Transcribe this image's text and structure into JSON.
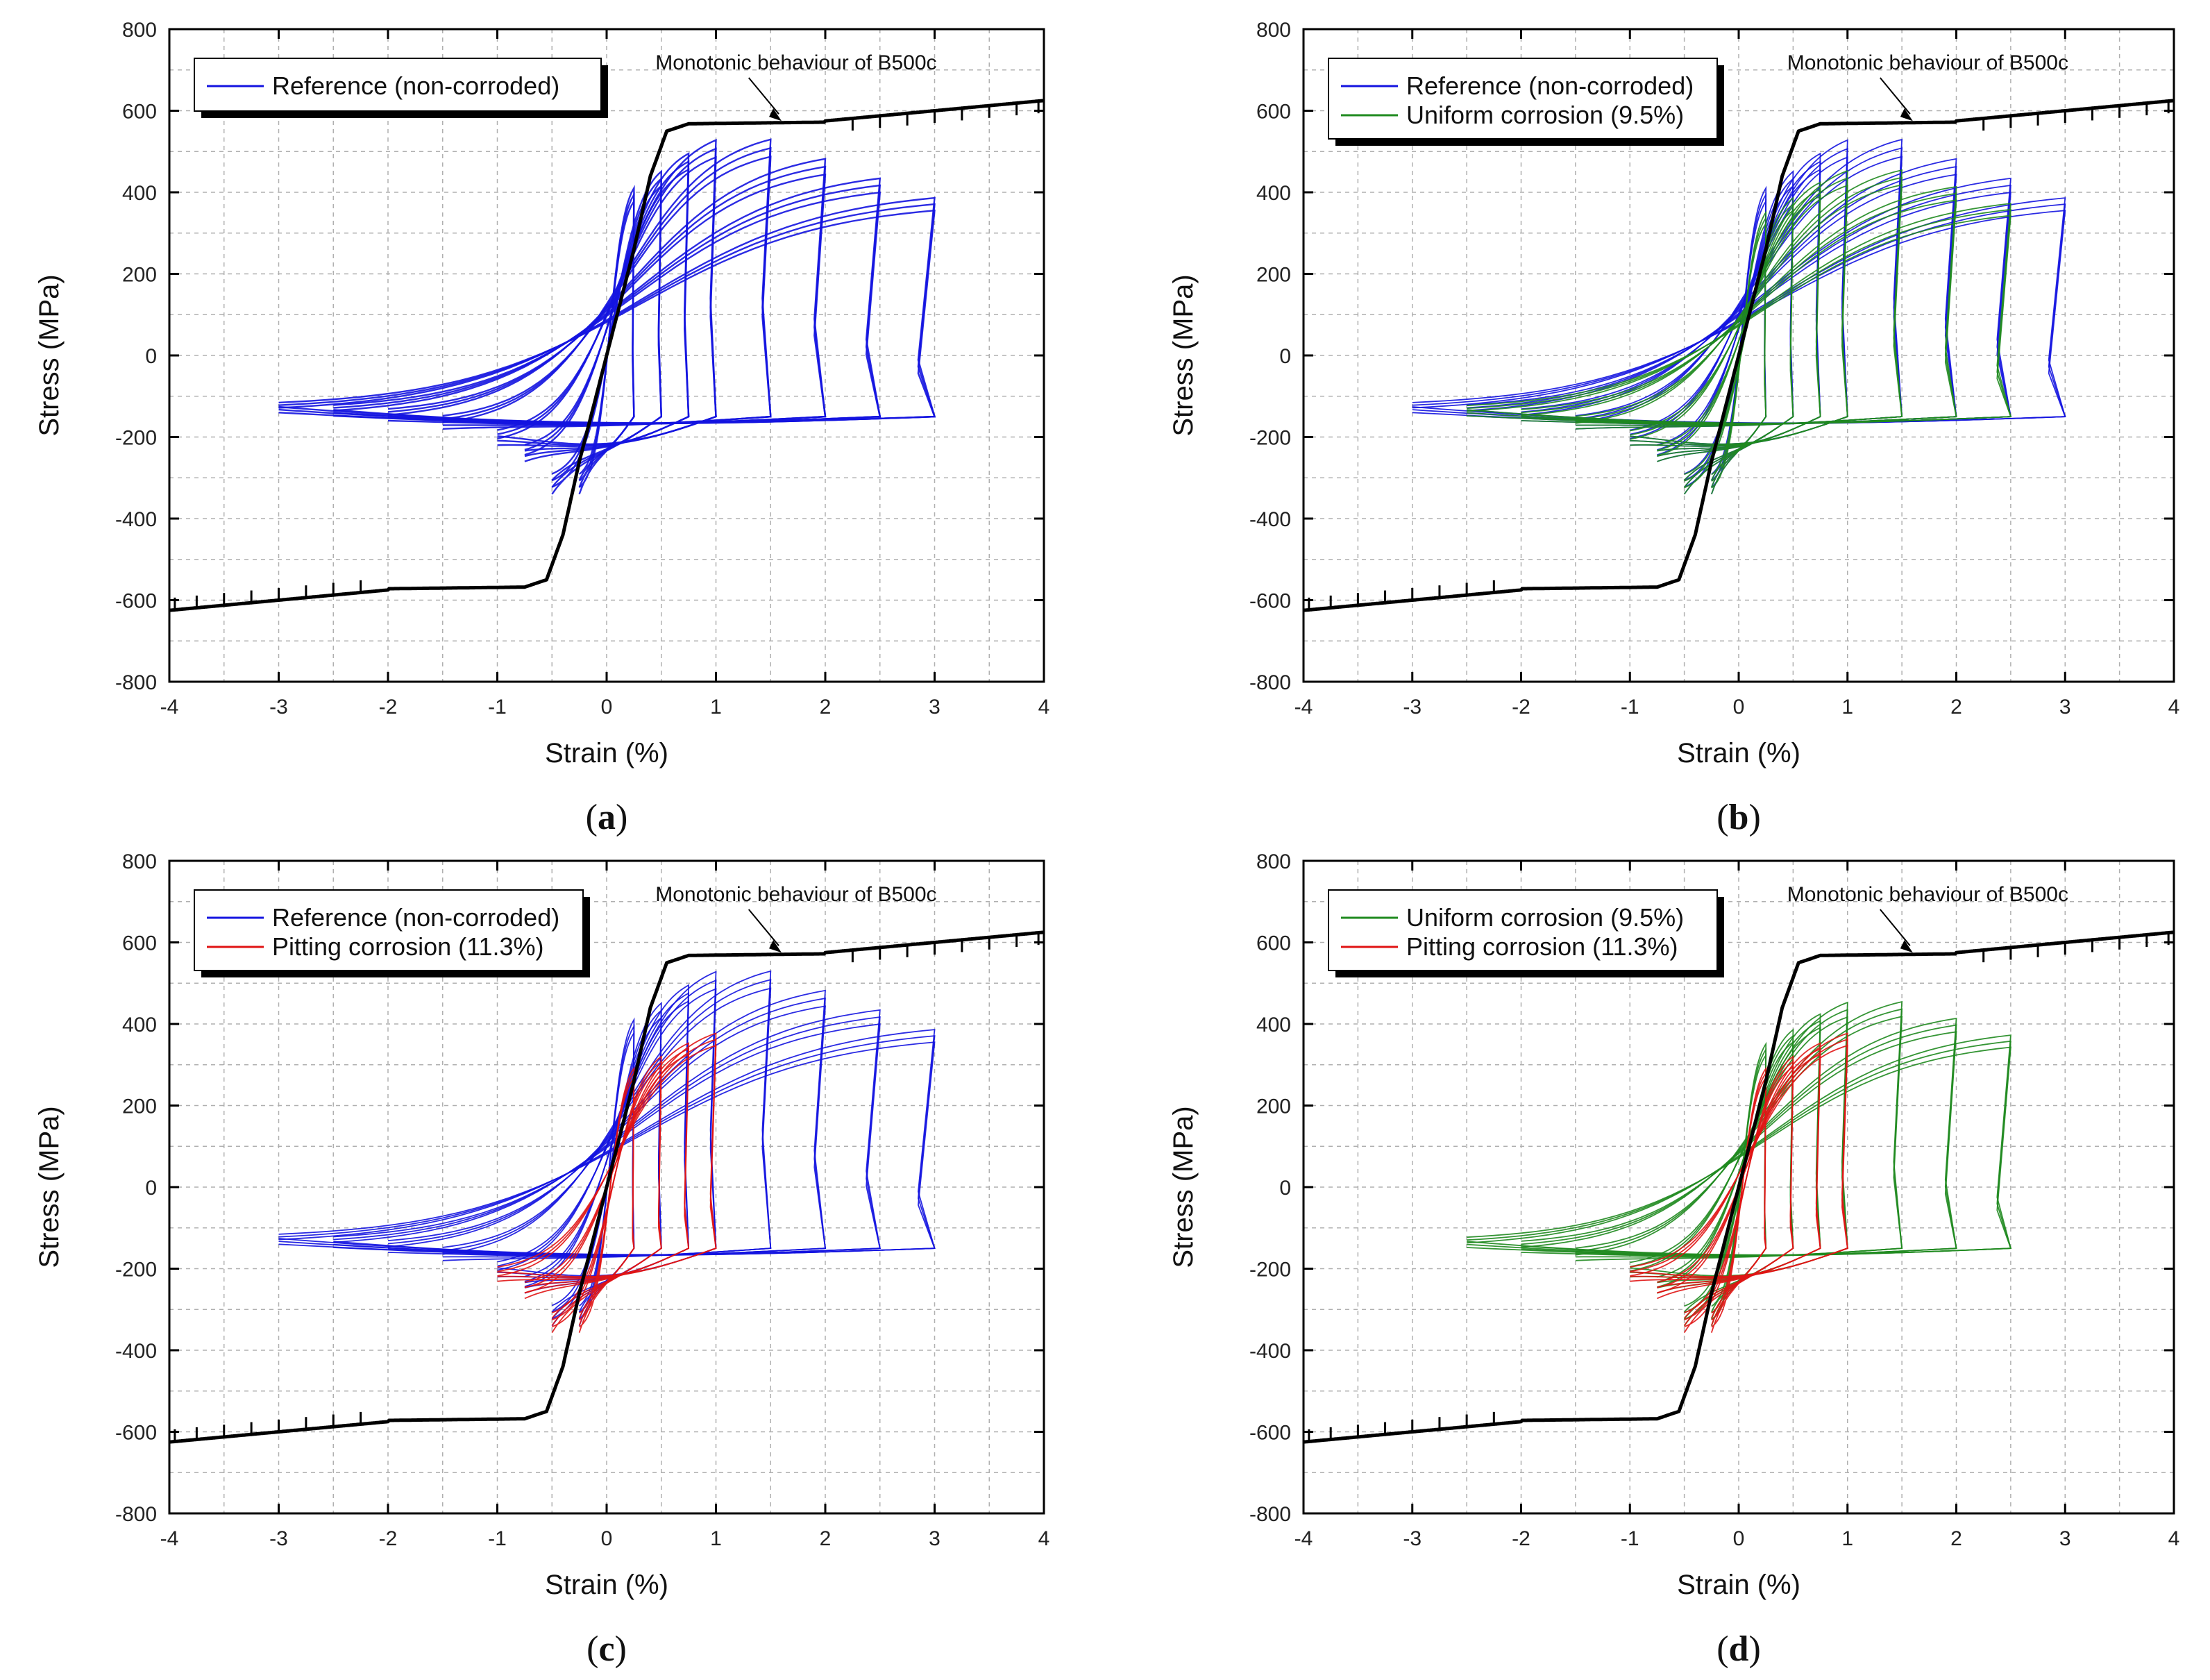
{
  "colors": {
    "reference": "#1414e0",
    "uniform": "#1f8a1f",
    "pitting": "#e01414",
    "monotonic": "#000000",
    "grid": "#b0b0b0"
  },
  "axes": {
    "xlabel": "Strain (%)",
    "ylabel": "Stress (MPa)",
    "xlim": [
      -4,
      4
    ],
    "ylim": [
      -800,
      800
    ],
    "xticks": [
      "-4",
      "-3",
      "-2",
      "-1",
      "0",
      "1",
      "2",
      "3",
      "4"
    ],
    "yticks": [
      "-800",
      "-600",
      "-400",
      "-200",
      "0",
      "200",
      "400",
      "600",
      "800"
    ],
    "grid": true
  },
  "annotation": "Monotonic behaviour of B500c",
  "panel_labels": [
    "a",
    "b",
    "c",
    "d"
  ],
  "chart_data": [
    {
      "type": "line",
      "panel": "a",
      "legend": [
        "Reference (non-corroded)"
      ],
      "series": [
        {
          "name": "Reference (non-corroded)",
          "color_key": "reference",
          "amplitudes": [
            0.25,
            0.5,
            0.75,
            1.0,
            1.5,
            2.0,
            2.5,
            3.0
          ]
        },
        {
          "name": "",
          "color_key": "monotonic",
          "x": [
            0,
            0.3,
            0.45,
            0.55,
            0.7,
            1.0,
            1.8,
            2.0,
            4.0
          ],
          "y": [
            0,
            300,
            450,
            540,
            565,
            570,
            570,
            580,
            630
          ]
        }
      ]
    },
    {
      "type": "line",
      "panel": "b",
      "legend": [
        "Reference (non-corroded)",
        "Uniform corrosion (9.5%)"
      ],
      "series": [
        {
          "name": "Reference (non-corroded)",
          "color_key": "reference",
          "amplitudes": [
            0.25,
            0.5,
            0.75,
            1.0,
            1.5,
            2.0,
            2.5,
            3.0
          ]
        },
        {
          "name": "Uniform corrosion (9.5%)",
          "color_key": "uniform",
          "amplitudes": [
            0.25,
            0.5,
            0.75,
            1.0,
            1.5,
            2.0,
            2.5
          ]
        },
        {
          "name": "",
          "color_key": "monotonic",
          "x": [
            0,
            0.3,
            0.45,
            0.55,
            0.7,
            1.0,
            1.8,
            2.0,
            4.0
          ],
          "y": [
            0,
            300,
            450,
            540,
            565,
            570,
            570,
            580,
            630
          ]
        }
      ]
    },
    {
      "type": "line",
      "panel": "c",
      "legend": [
        "Reference (non-corroded)",
        "Pitting corrosion (11.3%)"
      ],
      "series": [
        {
          "name": "Reference (non-corroded)",
          "color_key": "reference",
          "amplitudes": [
            0.25,
            0.5,
            0.75,
            1.0,
            1.5,
            2.0,
            2.5,
            3.0
          ]
        },
        {
          "name": "Pitting corrosion (11.3%)",
          "color_key": "pitting",
          "amplitudes": [
            0.25,
            0.5,
            0.75,
            1.0
          ]
        },
        {
          "name": "",
          "color_key": "monotonic",
          "x": [
            0,
            0.3,
            0.45,
            0.55,
            0.7,
            1.0,
            1.8,
            2.0,
            4.0
          ],
          "y": [
            0,
            300,
            450,
            540,
            565,
            570,
            570,
            580,
            630
          ]
        }
      ]
    },
    {
      "type": "line",
      "panel": "d",
      "legend": [
        "Uniform corrosion (9.5%)",
        "Pitting corrosion (11.3%)"
      ],
      "series": [
        {
          "name": "Uniform corrosion (9.5%)",
          "color_key": "uniform",
          "amplitudes": [
            0.25,
            0.5,
            0.75,
            1.0,
            1.5,
            2.0,
            2.5
          ]
        },
        {
          "name": "Pitting corrosion (11.3%)",
          "color_key": "pitting",
          "amplitudes": [
            0.25,
            0.5,
            0.75,
            1.0
          ]
        },
        {
          "name": "",
          "color_key": "monotonic",
          "x": [
            0,
            0.3,
            0.45,
            0.55,
            0.7,
            1.0,
            1.8,
            2.0,
            4.0
          ],
          "y": [
            0,
            300,
            450,
            540,
            565,
            570,
            570,
            580,
            630
          ]
        }
      ]
    }
  ]
}
